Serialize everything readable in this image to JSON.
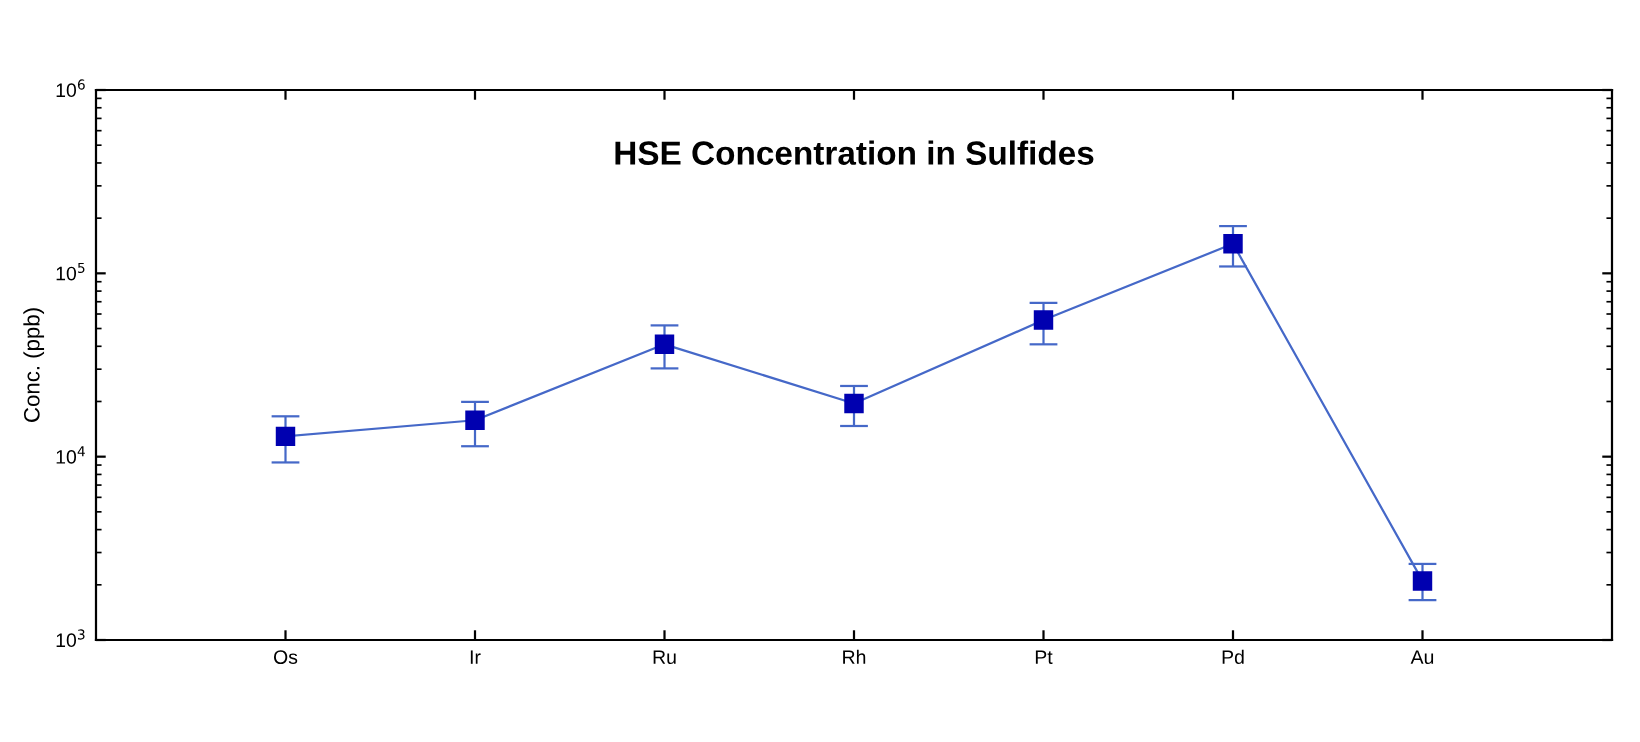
{
  "chart_data": {
    "type": "line",
    "title": "HSE Concentration in Sulfides",
    "ylabel": "Conc. (ppb)",
    "categories": [
      "Os",
      "Ir",
      "Ru",
      "Rh",
      "Pt",
      "Pd",
      "Au"
    ],
    "series": [
      {
        "color": "#0000b0",
        "values": [
          12900,
          15800,
          41000,
          19500,
          55600,
          145000,
          2100
        ],
        "errors": [
          [
            9300,
            16600
          ],
          [
            11400,
            19900
          ],
          [
            30300,
            52000
          ],
          [
            14700,
            24300
          ],
          [
            41000,
            69000
          ],
          [
            109000,
            181000
          ],
          [
            1650,
            2600
          ]
        ]
      }
    ],
    "log": "y",
    "ylim": [
      1000,
      1000000
    ],
    "yticks": [
      {
        "value": 1000,
        "label": "10$^{3}$"
      },
      {
        "value": 10000,
        "label": "10$^{4}$"
      },
      {
        "value": 100000,
        "label": "10$^{5}$"
      },
      {
        "value": 1000000,
        "label": "10$^{6}$"
      }
    ],
    "marker": "square",
    "line_style": "solid",
    "grid": false,
    "legend": false
  }
}
